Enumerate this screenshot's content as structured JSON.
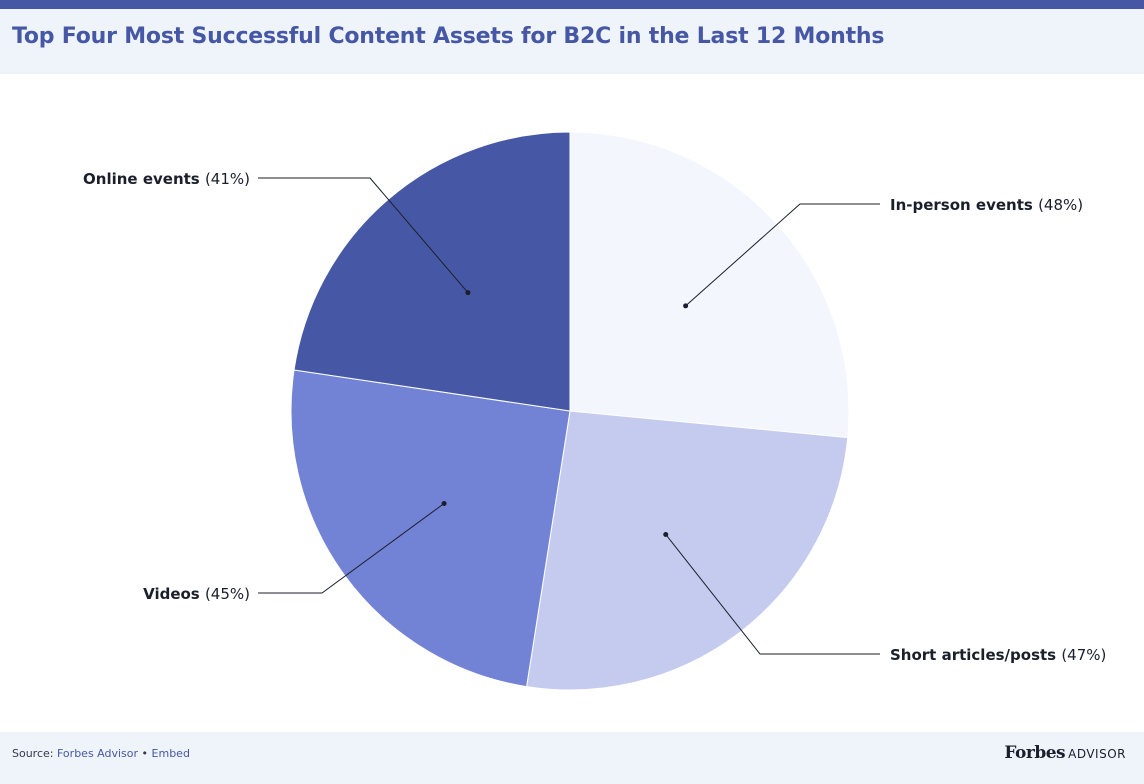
{
  "header": {
    "title": "Top Four Most Successful Content Assets for B2C in the Last 12 Months"
  },
  "footer": {
    "source_label": "Source:",
    "source_link": "Forbes Advisor",
    "separator": "•",
    "embed_link": "Embed",
    "brand_logo": "Forbes",
    "brand_sub": "ADVISOR"
  },
  "colors": {
    "accent": "#4658a5",
    "header_bg": "#eff3fa"
  },
  "chart_data": {
    "type": "pie",
    "title": "Top Four Most Successful Content Assets for B2C in the Last 12 Months",
    "categories": [
      "In-person events",
      "Short articles/posts",
      "Videos",
      "Online events"
    ],
    "values": [
      48,
      47,
      45,
      41
    ],
    "value_labels": [
      "(48%)",
      "(47%)",
      "(45%)",
      "(41%)"
    ],
    "colors": [
      "#f3f6fd",
      "#c5cbee",
      "#7283d5",
      "#4658a5"
    ],
    "start_angle_deg": 0,
    "direction": "clockwise",
    "legend": "none"
  }
}
